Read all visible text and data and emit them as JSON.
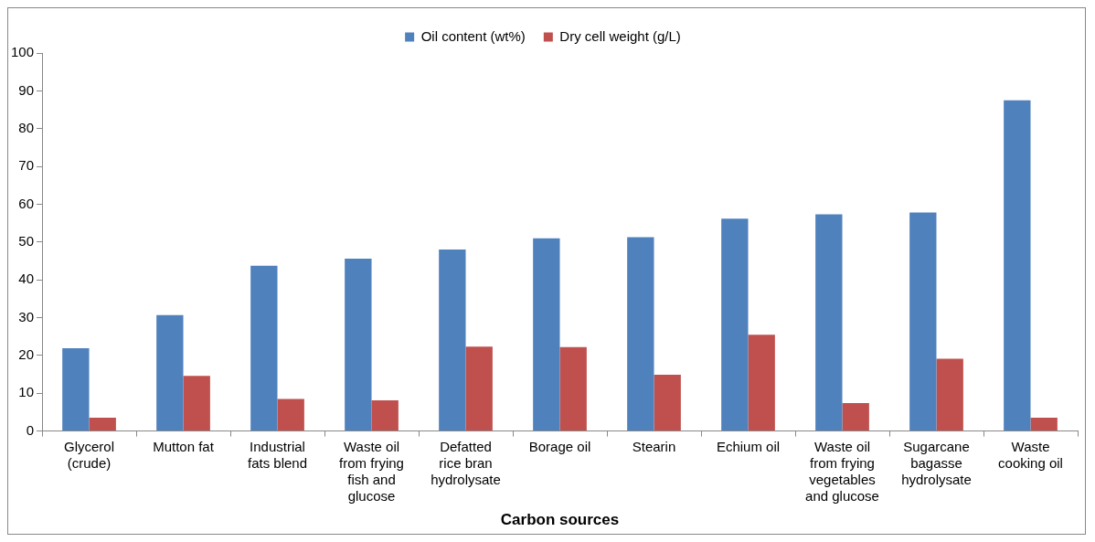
{
  "chart_data": {
    "type": "bar",
    "xlabel": "Carbon sources",
    "categories": [
      "Glycerol (crude)",
      "Mutton fat",
      "Industrial fats blend",
      "Waste oil from frying fish and glucose",
      "Defatted rice bran hydrolysate",
      "Borage oil",
      "Stearin",
      "Echium oil",
      "Waste oil from frying vegetables and glucose",
      "Sugarcane bagasse hydrolysate",
      "Waste cooking oil"
    ],
    "series": [
      {
        "name": "Oil content (wt%)",
        "color": "#4f81bd",
        "values": [
          21.9,
          30.7,
          43.7,
          45.6,
          48.0,
          51.0,
          51.3,
          56.2,
          57.3,
          57.8,
          87.5
        ]
      },
      {
        "name": "Dry cell weight (g/L)",
        "color": "#c0504d",
        "values": [
          3.5,
          14.6,
          8.5,
          8.1,
          22.3,
          22.2,
          14.9,
          25.5,
          7.4,
          19.1,
          3.5
        ]
      }
    ],
    "ylim": [
      0,
      100
    ],
    "yticks": [
      0,
      10,
      20,
      30,
      40,
      50,
      60,
      70,
      80,
      90,
      100
    ],
    "grid": false,
    "legend": "top"
  }
}
